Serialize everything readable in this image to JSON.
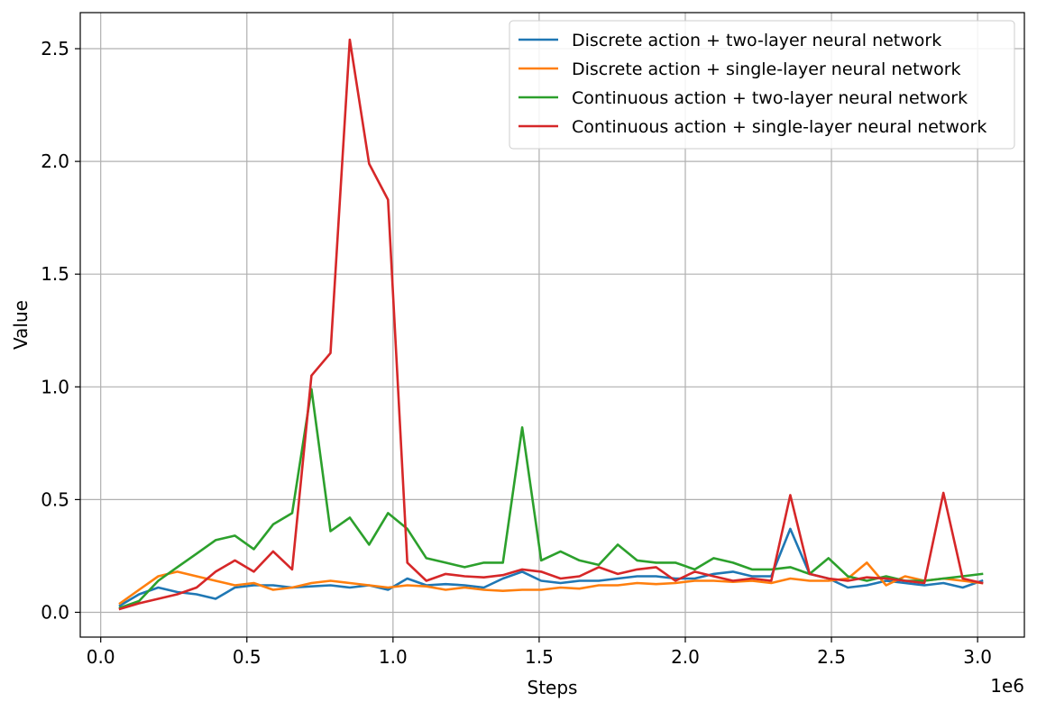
{
  "chart_data": {
    "type": "line",
    "title": "",
    "xlabel": "Steps",
    "ylabel": "Value",
    "x_offset_label": "1e6",
    "xlim": [
      -0.07,
      3.16
    ],
    "ylim": [
      -0.11,
      2.66
    ],
    "x_ticks": [
      0.0,
      0.5,
      1.0,
      1.5,
      2.0,
      2.5,
      3.0
    ],
    "x_tick_labels": [
      "0.0",
      "0.5",
      "1.0",
      "1.5",
      "2.0",
      "2.5",
      "3.0"
    ],
    "y_ticks": [
      0.0,
      0.5,
      1.0,
      1.5,
      2.0,
      2.5
    ],
    "y_tick_labels": [
      "0.0",
      "0.5",
      "1.0",
      "1.5",
      "2.0",
      "2.5"
    ],
    "grid": true,
    "legend_position": "top-right",
    "x": [
      0.066,
      0.131,
      0.197,
      0.262,
      0.328,
      0.393,
      0.459,
      0.524,
      0.59,
      0.655,
      0.721,
      0.786,
      0.852,
      0.918,
      0.983,
      1.049,
      1.114,
      1.18,
      1.245,
      1.311,
      1.376,
      1.442,
      1.507,
      1.573,
      1.638,
      1.704,
      1.769,
      1.835,
      1.9,
      1.966,
      2.032,
      2.097,
      2.163,
      2.228,
      2.294,
      2.359,
      2.425,
      2.49,
      2.556,
      2.621,
      2.687,
      2.752,
      2.818,
      2.883,
      2.949,
      3.015
    ],
    "series": [
      {
        "name": "Discrete action + two-layer neural network",
        "color": "#1f77b4",
        "values": [
          0.03,
          0.08,
          0.11,
          0.09,
          0.08,
          0.06,
          0.11,
          0.12,
          0.12,
          0.11,
          0.115,
          0.12,
          0.11,
          0.12,
          0.1,
          0.15,
          0.12,
          0.125,
          0.12,
          0.11,
          0.15,
          0.18,
          0.14,
          0.13,
          0.14,
          0.14,
          0.15,
          0.16,
          0.16,
          0.15,
          0.15,
          0.17,
          0.18,
          0.16,
          0.16,
          0.37,
          0.17,
          0.15,
          0.11,
          0.12,
          0.14,
          0.13,
          0.12,
          0.13,
          0.11,
          0.14
        ]
      },
      {
        "name": "Discrete action + single-layer neural network",
        "color": "#ff7f0e",
        "values": [
          0.04,
          0.1,
          0.16,
          0.18,
          0.16,
          0.14,
          0.12,
          0.13,
          0.1,
          0.11,
          0.13,
          0.14,
          0.13,
          0.12,
          0.11,
          0.12,
          0.115,
          0.1,
          0.11,
          0.1,
          0.095,
          0.1,
          0.1,
          0.11,
          0.105,
          0.12,
          0.12,
          0.13,
          0.125,
          0.13,
          0.14,
          0.14,
          0.135,
          0.14,
          0.13,
          0.15,
          0.14,
          0.14,
          0.15,
          0.22,
          0.12,
          0.16,
          0.14,
          0.15,
          0.14,
          0.13
        ]
      },
      {
        "name": "Continuous action + two-layer neural network",
        "color": "#2ca02c",
        "values": [
          0.02,
          0.05,
          0.14,
          0.2,
          0.26,
          0.32,
          0.34,
          0.28,
          0.39,
          0.44,
          0.99,
          0.36,
          0.42,
          0.3,
          0.44,
          0.37,
          0.24,
          0.22,
          0.2,
          0.22,
          0.22,
          0.82,
          0.23,
          0.27,
          0.23,
          0.21,
          0.3,
          0.23,
          0.22,
          0.22,
          0.19,
          0.24,
          0.22,
          0.19,
          0.19,
          0.2,
          0.17,
          0.24,
          0.16,
          0.14,
          0.16,
          0.14,
          0.14,
          0.15,
          0.16,
          0.17
        ]
      },
      {
        "name": "Continuous action + single-layer neural network",
        "color": "#d62728",
        "values": [
          0.015,
          0.04,
          0.06,
          0.08,
          0.11,
          0.18,
          0.23,
          0.18,
          0.27,
          0.19,
          1.05,
          1.15,
          2.54,
          1.99,
          1.83,
          0.22,
          0.14,
          0.17,
          0.16,
          0.155,
          0.165,
          0.19,
          0.18,
          0.15,
          0.16,
          0.2,
          0.17,
          0.19,
          0.2,
          0.14,
          0.18,
          0.16,
          0.14,
          0.15,
          0.14,
          0.52,
          0.17,
          0.15,
          0.14,
          0.155,
          0.15,
          0.14,
          0.13,
          0.53,
          0.15,
          0.13
        ]
      }
    ]
  }
}
